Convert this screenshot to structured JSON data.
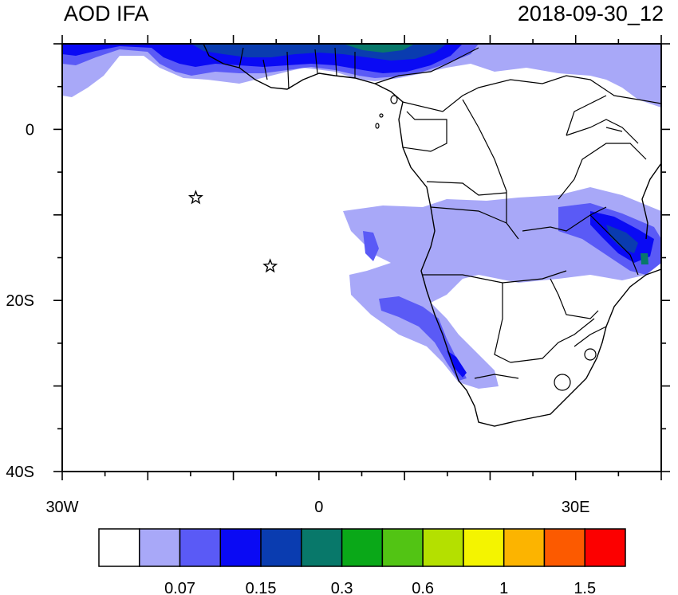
{
  "title": "AOD IFA",
  "timestamp": "2018-09-30_12",
  "map": {
    "lon_range": [
      -30,
      40
    ],
    "lat_range": [
      -40,
      10
    ],
    "x_tick_labels": [
      {
        "lon": -30,
        "text": "30W"
      },
      {
        "lon": 0,
        "text": "0"
      },
      {
        "lon": 30,
        "text": "30E"
      }
    ],
    "y_tick_labels": [
      {
        "lat": 0,
        "text": "0"
      },
      {
        "lat": -20,
        "text": "20S"
      },
      {
        "lat": -40,
        "text": "40S"
      }
    ],
    "star_markers": [
      {
        "lon": -14.4,
        "lat": -8.0
      },
      {
        "lon": -5.7,
        "lat": -16.0
      }
    ]
  },
  "colorbar": {
    "colors": [
      "#ffffff",
      "#a8a8f8",
      "#5a5af6",
      "#0a0af4",
      "#0a3cb0",
      "#08786a",
      "#0aa818",
      "#52c414",
      "#b4e000",
      "#f4f400",
      "#fcb400",
      "#fc5a00",
      "#fc0000"
    ],
    "labels": [
      {
        "after_box": 2,
        "text": "0.07"
      },
      {
        "after_box": 4,
        "text": "0.15"
      },
      {
        "after_box": 6,
        "text": "0.3"
      },
      {
        "after_box": 8,
        "text": "0.6"
      },
      {
        "after_box": 10,
        "text": "1"
      },
      {
        "after_box": 12,
        "text": "1.5"
      }
    ]
  }
}
